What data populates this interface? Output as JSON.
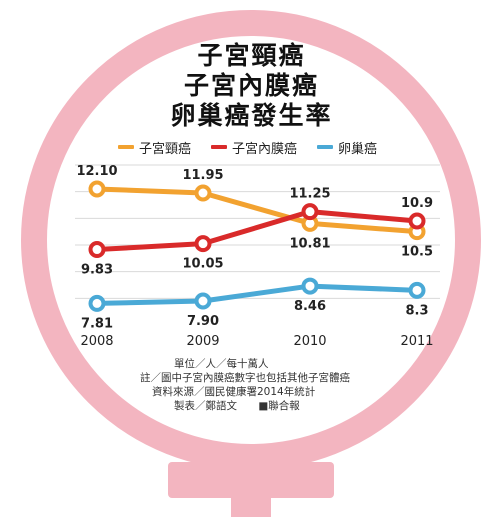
{
  "titles": [
    "子宮頸癌",
    "子宮內膜癌",
    "卵巢癌發生率"
  ],
  "colors": {
    "ring": "#f3b5c0",
    "ring_inner": "#ffffff",
    "orange": "#f2a230",
    "red": "#d92a2a",
    "blue": "#4aa9d6",
    "grid": "#d9d9d9"
  },
  "notes": {
    "unit": "單位／人／每十萬人",
    "note": "註／圖中子宮內膜癌數字也包括其他子宮體癌",
    "source": "資料來源／國民健康署2014年統計",
    "credit_left": "製表／鄭語文",
    "credit_right": "■聯合報"
  },
  "chart_data": {
    "type": "line",
    "categories": [
      "2008",
      "2009",
      "2010",
      "2011"
    ],
    "ylim": [
      7,
      13
    ],
    "grid": true,
    "legend_position": "top",
    "series": [
      {
        "name": "子宮頸癌",
        "color": "#f2a230",
        "values": [
          12.1,
          11.95,
          10.81,
          10.5
        ],
        "labels": [
          "12.10",
          "11.95",
          "10.81",
          "10.5"
        ],
        "label_pos": [
          "above",
          "above",
          "below",
          "below"
        ]
      },
      {
        "name": "子宮內膜癌",
        "color": "#d92a2a",
        "values": [
          9.83,
          10.05,
          11.25,
          10.9
        ],
        "labels": [
          "9.83",
          "10.05",
          "11.25",
          "10.9"
        ],
        "label_pos": [
          "below",
          "below",
          "above",
          "above"
        ]
      },
      {
        "name": "卵巢癌",
        "color": "#4aa9d6",
        "values": [
          7.81,
          7.9,
          8.46,
          8.3
        ],
        "labels": [
          "7.81",
          "7.90",
          "8.46",
          "8.3"
        ],
        "label_pos": [
          "below",
          "below",
          "below",
          "below"
        ]
      }
    ]
  }
}
